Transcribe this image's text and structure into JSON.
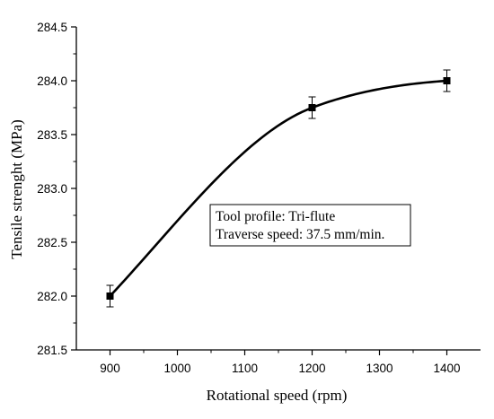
{
  "chart_data": {
    "type": "line",
    "xlabel": "Rotational speed (rpm)",
    "ylabel": "Tensile strenght (MPa)",
    "xlim": [
      850,
      1450
    ],
    "ylim": [
      281.5,
      284.5
    ],
    "xticks": [
      900,
      1000,
      1100,
      1200,
      1300,
      1400
    ],
    "xtick_labels": [
      "900",
      "1000",
      "1100",
      "1200",
      "1300",
      "1400"
    ],
    "yticks": [
      281.5,
      282.0,
      282.5,
      283.0,
      283.5,
      284.0,
      284.5
    ],
    "ytick_labels": [
      "281.5",
      "282.0",
      "282.5",
      "283.0",
      "283.5",
      "284.0",
      "284.5"
    ],
    "series": [
      {
        "x": [
          900,
          1200,
          1400
        ],
        "y": [
          282.0,
          283.75,
          284.0
        ],
        "error": [
          0.1,
          0.1,
          0.1
        ]
      }
    ],
    "smooth": true,
    "marker": "square",
    "grid": false,
    "annotation": {
      "lines": [
        "Tool profile: Tri-flute",
        "Traverse speed: 37.5 mm/min."
      ]
    }
  }
}
